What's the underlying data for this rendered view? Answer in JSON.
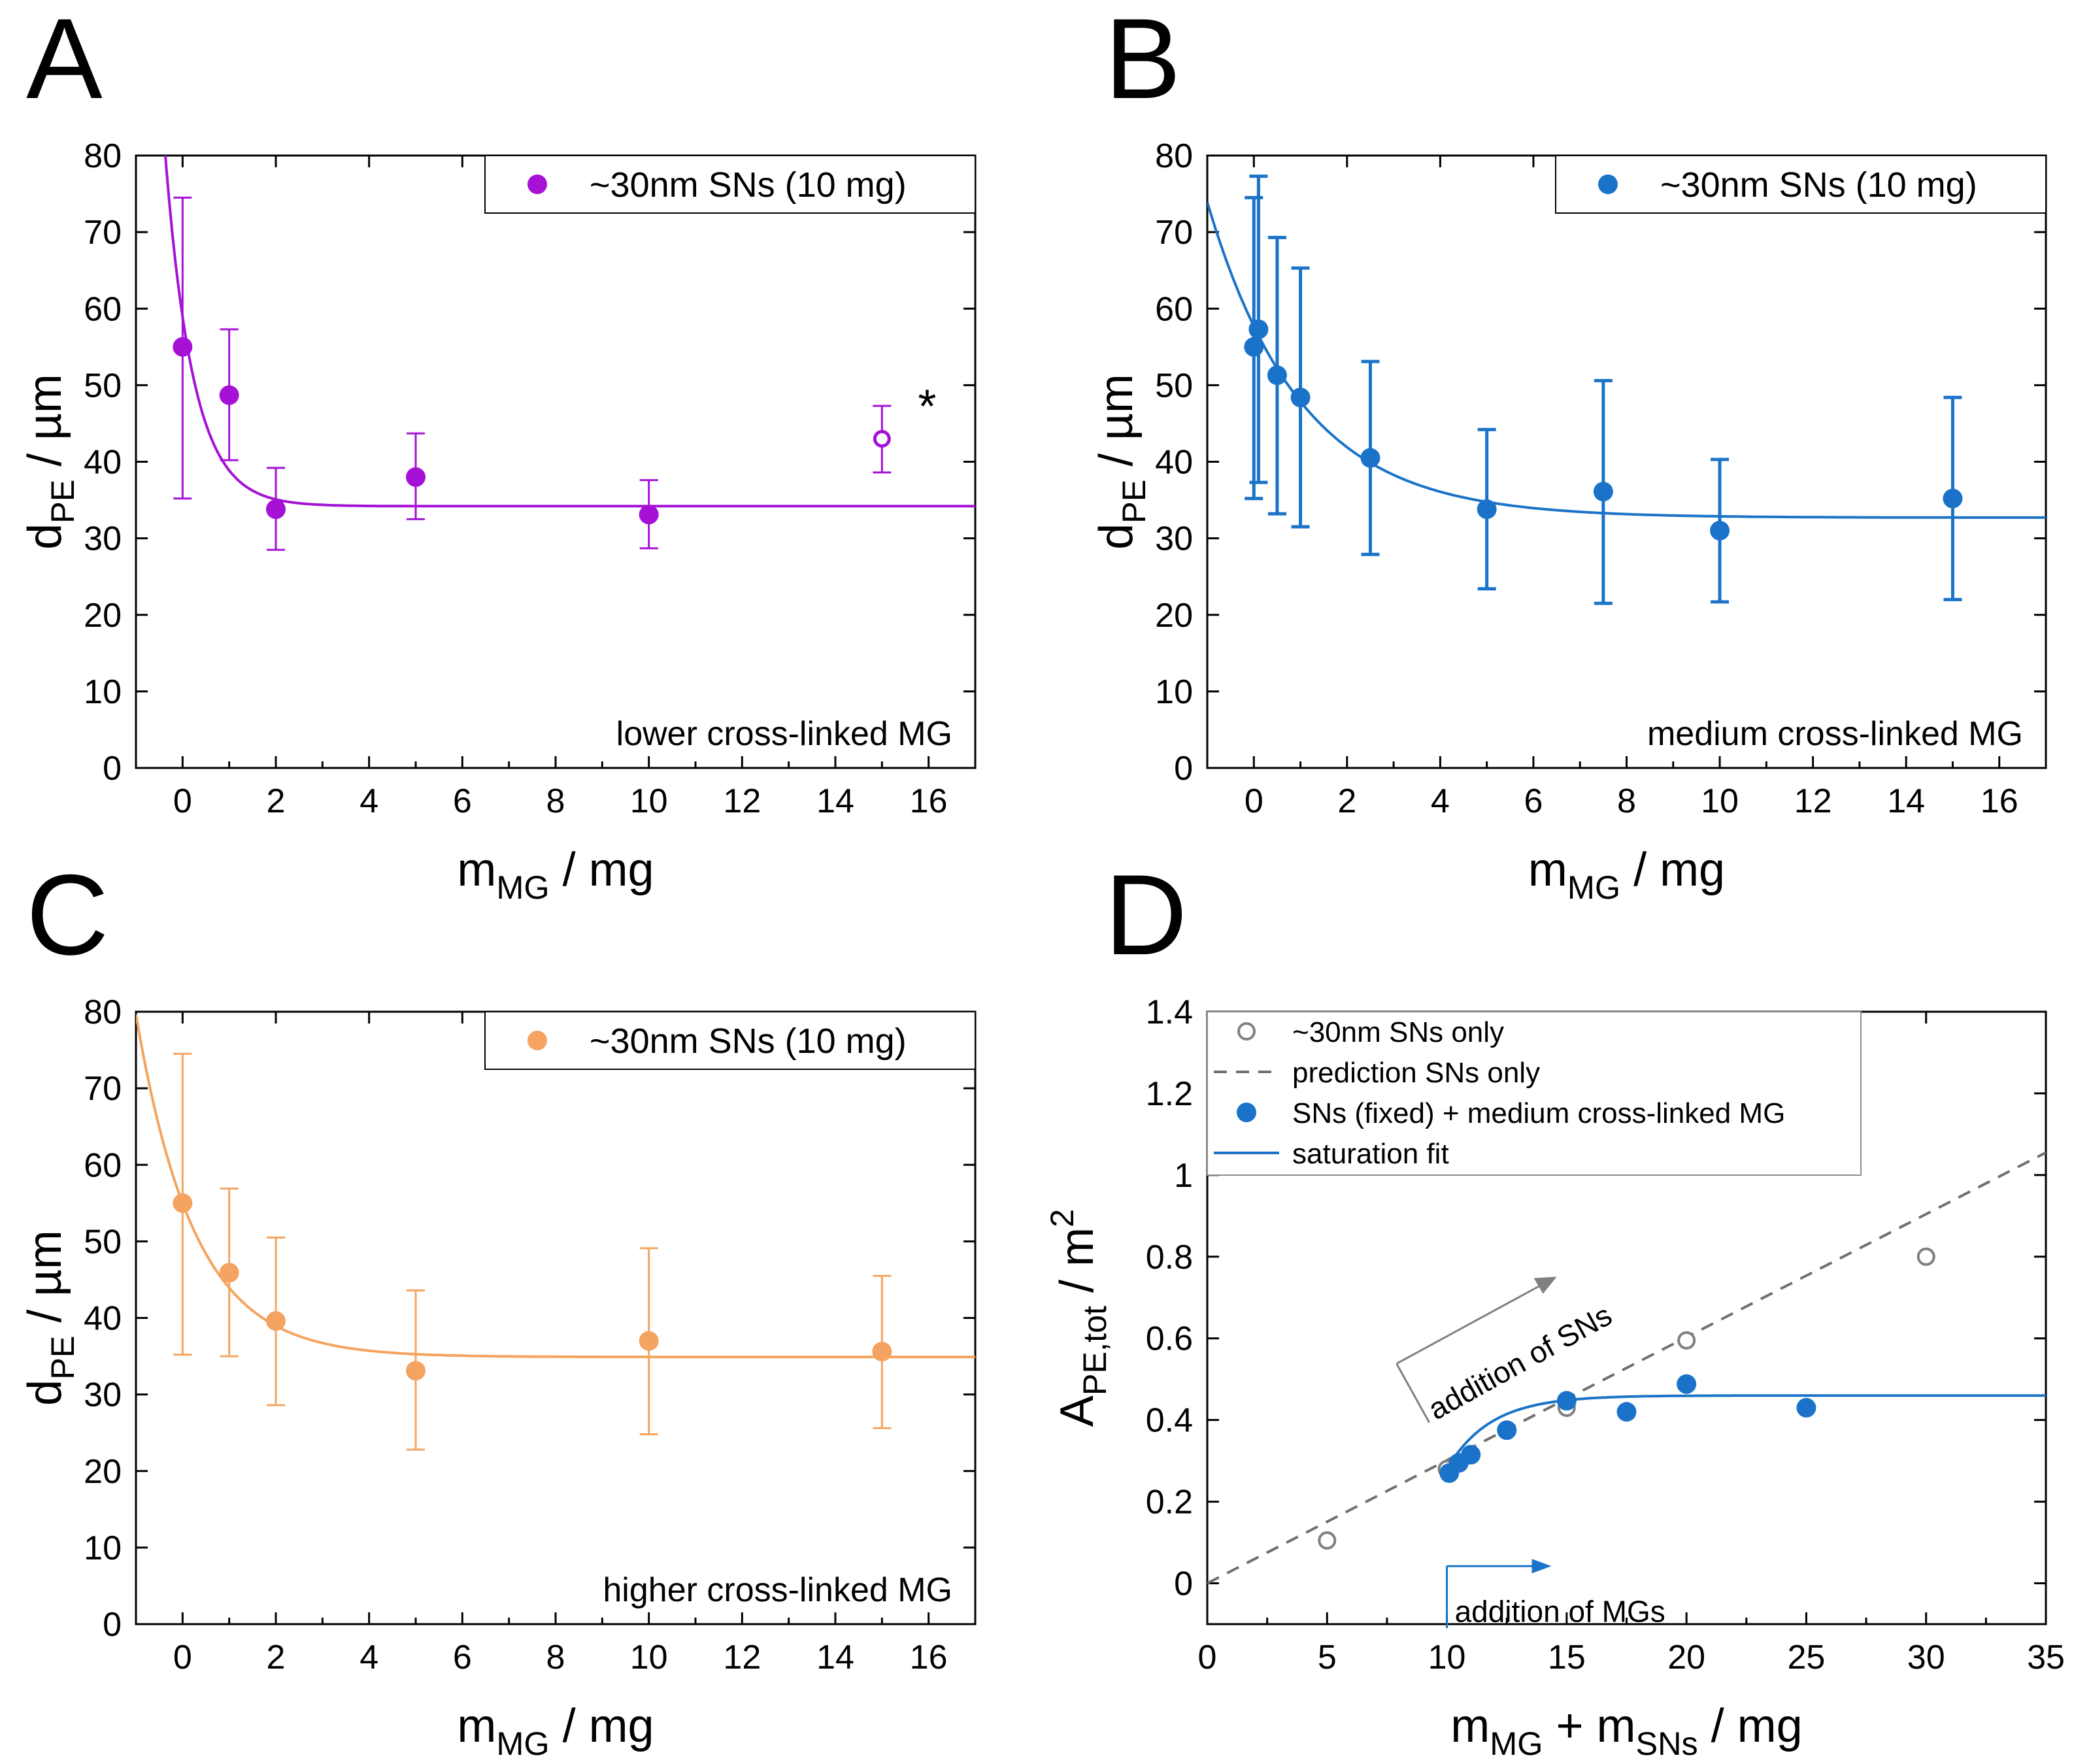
{
  "chart_data": [
    {
      "panel": "A",
      "type": "scatter",
      "color": "#a512d6",
      "xlabel_main": "m",
      "xlabel_sub": "MG",
      "xlabel_tail": " / mg",
      "ylabel_main": "d",
      "ylabel_sub": "PE",
      "ylabel_tail": " / µm",
      "xlim": [
        -1,
        17
      ],
      "ylim": [
        0,
        80
      ],
      "xticks": [
        0,
        2,
        4,
        6,
        8,
        10,
        12,
        14,
        16
      ],
      "yticks": [
        0,
        10,
        20,
        30,
        40,
        50,
        60,
        70,
        80
      ],
      "legend": "~30nm SNs (10 mg)",
      "annotation": "lower cross-linked MG",
      "outlier_mark": "*",
      "points": [
        {
          "x": 0,
          "y": 55,
          "yerr_low": 35.2,
          "yerr_high": 74.5
        },
        {
          "x": 1,
          "y": 48.7,
          "yerr_low": 40.2,
          "yerr_high": 57.3
        },
        {
          "x": 2,
          "y": 33.8,
          "yerr_low": 28.5,
          "yerr_high": 39.2
        },
        {
          "x": 5,
          "y": 38,
          "yerr_low": 32.5,
          "yerr_high": 43.7
        },
        {
          "x": 10,
          "y": 33.1,
          "yerr_low": 28.7,
          "yerr_high": 37.6
        },
        {
          "x": 15,
          "y": 43,
          "yerr_low": 38.6,
          "yerr_high": 47.3,
          "open": true
        }
      ],
      "fit": {
        "model": "exponential",
        "y0": 34.2,
        "A": 24.7,
        "tau": 0.6
      }
    },
    {
      "panel": "B",
      "type": "scatter",
      "color": "#1a73c8",
      "xlabel_main": "m",
      "xlabel_sub": "MG",
      "xlabel_tail": " / mg",
      "ylabel_main": "d",
      "ylabel_sub": "PE",
      "ylabel_tail": " / µm",
      "xlim": [
        -1,
        17
      ],
      "ylim": [
        0,
        80
      ],
      "xticks": [
        0,
        2,
        4,
        6,
        8,
        10,
        12,
        14,
        16
      ],
      "yticks": [
        0,
        10,
        20,
        30,
        40,
        50,
        60,
        70,
        80
      ],
      "legend": "~30nm SNs (10 mg)",
      "annotation": "medium cross-linked MG",
      "points": [
        {
          "x": 0,
          "y": 55,
          "yerr_low": 35.2,
          "yerr_high": 74.5
        },
        {
          "x": 0.1,
          "y": 57.3,
          "yerr_low": 37.3,
          "yerr_high": 77.3
        },
        {
          "x": 0.5,
          "y": 51.3,
          "yerr_low": 33.2,
          "yerr_high": 69.3
        },
        {
          "x": 1,
          "y": 48.4,
          "yerr_low": 31.5,
          "yerr_high": 65.3
        },
        {
          "x": 2.5,
          "y": 40.5,
          "yerr_low": 27.9,
          "yerr_high": 53.1
        },
        {
          "x": 5,
          "y": 33.8,
          "yerr_low": 23.4,
          "yerr_high": 44.2
        },
        {
          "x": 7.5,
          "y": 36.1,
          "yerr_low": 21.5,
          "yerr_high": 50.6
        },
        {
          "x": 10,
          "y": 31,
          "yerr_low": 21.7,
          "yerr_high": 40.3
        },
        {
          "x": 15,
          "y": 35.2,
          "yerr_low": 22,
          "yerr_high": 48.4
        }
      ],
      "fit": {
        "model": "exponential",
        "y0": 32.7,
        "A": 25,
        "tau": 2.0
      }
    },
    {
      "panel": "C",
      "type": "scatter",
      "color": "#f4a460",
      "xlabel_main": "m",
      "xlabel_sub": "MG",
      "xlabel_tail": " / mg",
      "ylabel_main": "d",
      "ylabel_sub": "PE",
      "ylabel_tail": " / µm",
      "xlim": [
        -1,
        17
      ],
      "ylim": [
        0,
        80
      ],
      "xticks": [
        0,
        2,
        4,
        6,
        8,
        10,
        12,
        14,
        16
      ],
      "yticks": [
        0,
        10,
        20,
        30,
        40,
        50,
        60,
        70,
        80
      ],
      "legend": "~30nm SNs (10 mg)",
      "annotation": "higher cross-linked MG",
      "points": [
        {
          "x": 0,
          "y": 55,
          "yerr_low": 35.2,
          "yerr_high": 74.5
        },
        {
          "x": 1,
          "y": 45.9,
          "yerr_low": 35,
          "yerr_high": 56.9
        },
        {
          "x": 2,
          "y": 39.6,
          "yerr_low": 28.6,
          "yerr_high": 50.5
        },
        {
          "x": 5,
          "y": 33.1,
          "yerr_low": 22.8,
          "yerr_high": 43.6
        },
        {
          "x": 10,
          "y": 37,
          "yerr_low": 24.8,
          "yerr_high": 49.1
        },
        {
          "x": 15,
          "y": 35.6,
          "yerr_low": 25.6,
          "yerr_high": 45.5
        }
      ],
      "fit": {
        "model": "exponential",
        "y0": 34.9,
        "A": 20.1,
        "tau": 1.25
      }
    },
    {
      "panel": "D",
      "type": "scatter",
      "xlabel_parts": [
        "m",
        "MG",
        " + m",
        "SNs",
        " / mg"
      ],
      "ylabel_main": "A",
      "ylabel_sub": "PE,tot",
      "ylabel_tail": " / m",
      "ylabel_sup": "2",
      "xlim": [
        0,
        35
      ],
      "ylim": [
        -0.1,
        1.4
      ],
      "xticks": [
        0,
        5,
        10,
        15,
        20,
        25,
        30,
        35
      ],
      "yticks": [
        0,
        0.2,
        0.4,
        0.6,
        0.8,
        1,
        1.2,
        1.4
      ],
      "ytick_labels": [
        "0",
        "0.2",
        "0.4",
        "0.6",
        "0.8",
        "1",
        "1.2",
        "1.4"
      ],
      "series": [
        {
          "name": "~30nm SNs only",
          "style": "open-circle",
          "color": "#808080",
          "x": [
            5,
            10,
            15,
            20,
            30
          ],
          "y": [
            0.105,
            0.28,
            0.43,
            0.595,
            0.8
          ]
        },
        {
          "name": "prediction SNs only",
          "style": "dashed-line",
          "color": "#707070",
          "x": [
            0,
            35
          ],
          "y": [
            0,
            1.055
          ]
        },
        {
          "name": "SNs (fixed) + medium cross-linked MG",
          "style": "filled-circle",
          "color": "#1a73c8",
          "x": [
            10.1,
            10.5,
            11,
            12.5,
            15,
            17.5,
            20,
            25
          ],
          "y": [
            0.27,
            0.295,
            0.315,
            0.375,
            0.447,
            0.42,
            0.488,
            0.43
          ]
        },
        {
          "name": "saturation fit",
          "style": "solid-line",
          "color": "#1a73c8",
          "model": "saturation",
          "x0": 10,
          "y_start": 0.28,
          "y_sat": 0.46,
          "k": 0.55
        }
      ],
      "annotations": [
        {
          "text": "addition of SNs",
          "color": "#808080"
        },
        {
          "text": "addition of MGs",
          "color": "#1a73c8"
        }
      ]
    }
  ]
}
